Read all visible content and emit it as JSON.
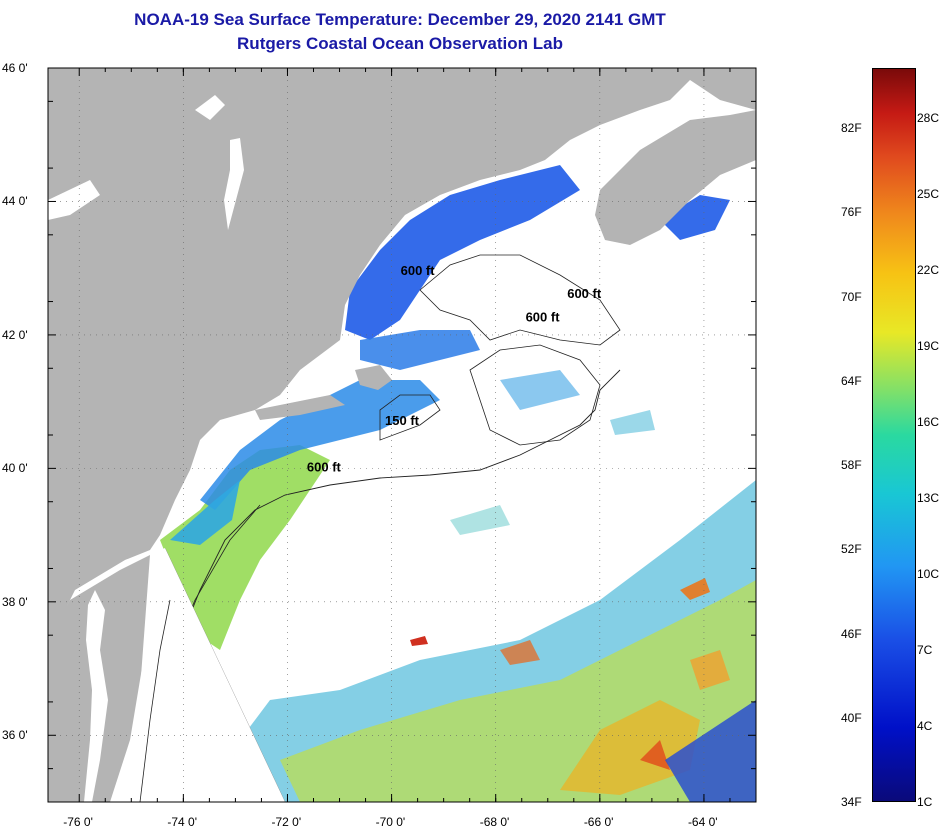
{
  "title": "NOAA-19 Sea Surface Temperature:  December 29, 2020 2141 GMT",
  "subtitle": "Rutgers Coastal Ocean Observation Lab",
  "lat_ticks": [
    {
      "lat": 46,
      "label": "46 0'"
    },
    {
      "lat": 44,
      "label": "44 0'"
    },
    {
      "lat": 42,
      "label": "42 0'"
    },
    {
      "lat": 40,
      "label": "40 0'"
    },
    {
      "lat": 38,
      "label": "38 0'"
    },
    {
      "lat": 36,
      "label": "36 0'"
    }
  ],
  "lon_ticks": [
    {
      "lon": -76,
      "label": "-76 0'"
    },
    {
      "lon": -74,
      "label": "-74 0'"
    },
    {
      "lon": -72,
      "label": "-72 0'"
    },
    {
      "lon": -70,
      "label": "-70 0'"
    },
    {
      "lon": -68,
      "label": "-68 0'"
    },
    {
      "lon": -66,
      "label": "-66 0'"
    },
    {
      "lon": -64,
      "label": "-64 0'"
    }
  ],
  "map_extent": {
    "lon_min": -76.6,
    "lon_max": -63.0,
    "lat_min": 35.0,
    "lat_max": 46.0
  },
  "contour_labels": [
    {
      "text": "600 ft",
      "lat": 42.9,
      "lon": -69.5
    },
    {
      "text": "600 ft",
      "lat": 42.55,
      "lon": -66.3
    },
    {
      "text": "600 ft",
      "lat": 42.2,
      "lon": -67.1
    },
    {
      "text": "150 ft",
      "lat": 40.65,
      "lon": -69.8
    },
    {
      "text": "600 ft",
      "lat": 39.95,
      "lon": -71.3
    }
  ],
  "colorbar": {
    "fahrenheit": [
      "82F",
      "76F",
      "70F",
      "64F",
      "58F",
      "52F",
      "46F",
      "40F",
      "34F"
    ],
    "celsius": [
      "28C",
      "25C",
      "22C",
      "19C",
      "16C",
      "13C",
      "10C",
      "7C",
      "4C",
      "1C"
    ]
  },
  "colors": {
    "land": "#b4b4b4",
    "cloud": "#ffffff",
    "title": "#1a1aa6"
  }
}
